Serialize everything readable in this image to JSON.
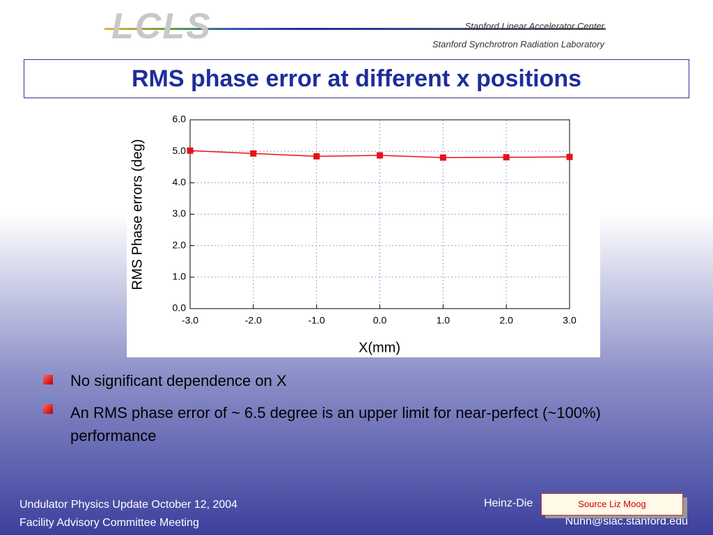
{
  "header": {
    "logo": "LCLS",
    "org1": "Stanford Linear Accelerator Center",
    "org2": "Stanford Synchrotron Radiation Laboratory"
  },
  "title": "RMS phase error at different x positions",
  "chart_data": {
    "type": "line",
    "x": [
      -3,
      -2,
      -1,
      0,
      1,
      2,
      3
    ],
    "series": [
      {
        "name": "RMS phase error",
        "color": "#e8101a",
        "values": [
          5.02,
          4.93,
          4.84,
          4.87,
          4.8,
          4.81,
          4.82
        ]
      }
    ],
    "xlim": [
      -3,
      3
    ],
    "xticks": [
      {
        "value": -3,
        "label": "-3.0"
      },
      {
        "value": -2,
        "label": "-2.0"
      },
      {
        "value": -1,
        "label": "-1.0"
      },
      {
        "value": 0,
        "label": "0.0"
      },
      {
        "value": 1,
        "label": "1.0"
      },
      {
        "value": 2,
        "label": "2.0"
      },
      {
        "value": 3,
        "label": "3.0"
      }
    ],
    "ylim": [
      0,
      6
    ],
    "yticks": [
      {
        "value": 0,
        "label": "0.0"
      },
      {
        "value": 1,
        "label": "1.0"
      },
      {
        "value": 2,
        "label": "2.0"
      },
      {
        "value": 3,
        "label": "3.0"
      },
      {
        "value": 4,
        "label": "4.0"
      },
      {
        "value": 5,
        "label": "5.0"
      },
      {
        "value": 6,
        "label": "6.0"
      }
    ],
    "xlabel": "X(mm)",
    "ylabel": "RMS Phase errors (deg)",
    "grid": true
  },
  "bullets": [
    "No significant dependence on X",
    "An RMS phase error of ~ 6.5 degree is an upper limit for near-perfect (~100%) performance"
  ],
  "footer": {
    "left1": "Undulator Physics Update  October 12, 2004",
    "left2": "Facility Advisory Committee Meeting",
    "right1": "Heinz-Die",
    "right2": "Nuhn@slac.stanford.edu"
  },
  "source_note": "Source Liz Moog"
}
